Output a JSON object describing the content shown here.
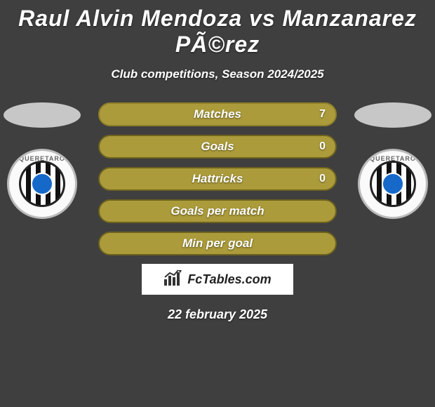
{
  "header": {
    "title": "Raul Alvin Mendoza vs Manzanarez PÃ©rez",
    "title_color": "#ffffff",
    "title_fontsize": 32,
    "subtitle": "Club competitions, Season 2024/2025",
    "subtitle_color": "#ffffff",
    "subtitle_fontsize": 17
  },
  "background_color": "#3f3f3f",
  "players": {
    "left": {
      "avatar_placeholder_color": "#c7c7c7",
      "club_name": "QUERETARO"
    },
    "right": {
      "avatar_placeholder_color": "#c7c7c7",
      "club_name": "QUERETARO"
    }
  },
  "stats": {
    "pill_bg": "#ab9b3b",
    "pill_border": "#6d621f",
    "pill_border_first": "#8f8028",
    "label_color": "#ffffff",
    "label_fontsize": 17,
    "value_color": "#ffffff",
    "value_fontsize": 16,
    "rows": [
      {
        "label": "Matches",
        "right_value": "7"
      },
      {
        "label": "Goals",
        "right_value": "0"
      },
      {
        "label": "Hattricks",
        "right_value": "0"
      },
      {
        "label": "Goals per match",
        "right_value": ""
      },
      {
        "label": "Min per goal",
        "right_value": ""
      }
    ]
  },
  "brand": {
    "text": "FcTables.com",
    "box_bg": "#ffffff",
    "text_color": "#222222",
    "icon_color": "#333333"
  },
  "footer": {
    "date": "22 february 2025",
    "date_fontsize": 18,
    "date_color": "#ffffff"
  }
}
